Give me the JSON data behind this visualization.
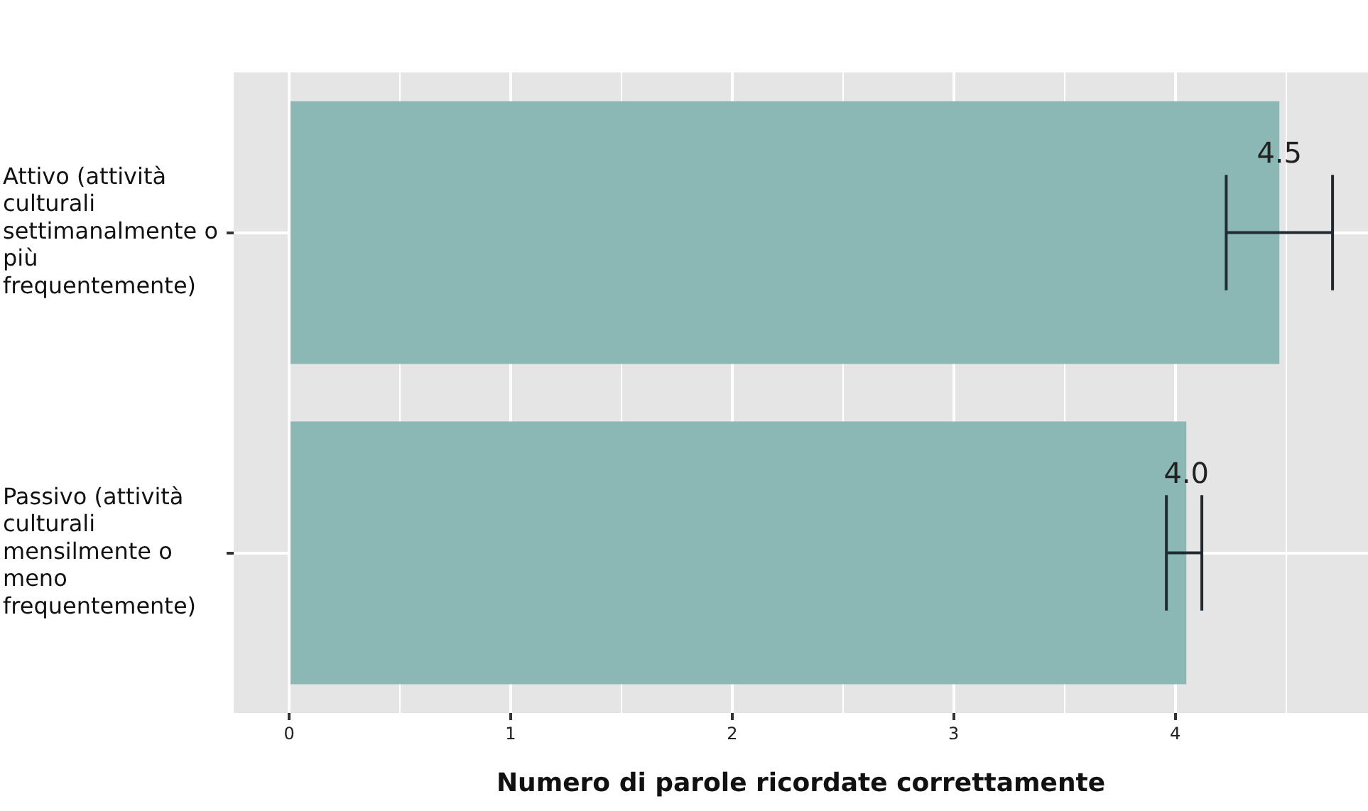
{
  "chart_data": {
    "type": "bar",
    "orientation": "horizontal",
    "xlabel": "Numero di parole ricordate correttamente",
    "categories": [
      "Attivo (attività culturali settimanalmente o più frequentemente)",
      "Passivo (attività culturali mensilmente o meno frequentemente)"
    ],
    "values": [
      4.47,
      4.05
    ],
    "color": "#8bb8b5",
    "errors": [
      [
        4.23,
        4.71
      ],
      [
        3.96,
        4.12
      ]
    ],
    "value_labels": [
      "4.5",
      "4.0"
    ],
    "xlim": [
      -0.25,
      4.87
    ],
    "xticks": [
      0,
      {
        "value": 0.5,
        "label": null
      },
      1,
      {
        "value": 1.5,
        "label": null
      },
      2,
      {
        "value": 2.5,
        "label": null
      },
      3,
      {
        "value": 3.5,
        "label": null
      },
      4,
      {
        "value": 4.5,
        "label": null
      }
    ],
    "grid": true,
    "legend": false
  }
}
